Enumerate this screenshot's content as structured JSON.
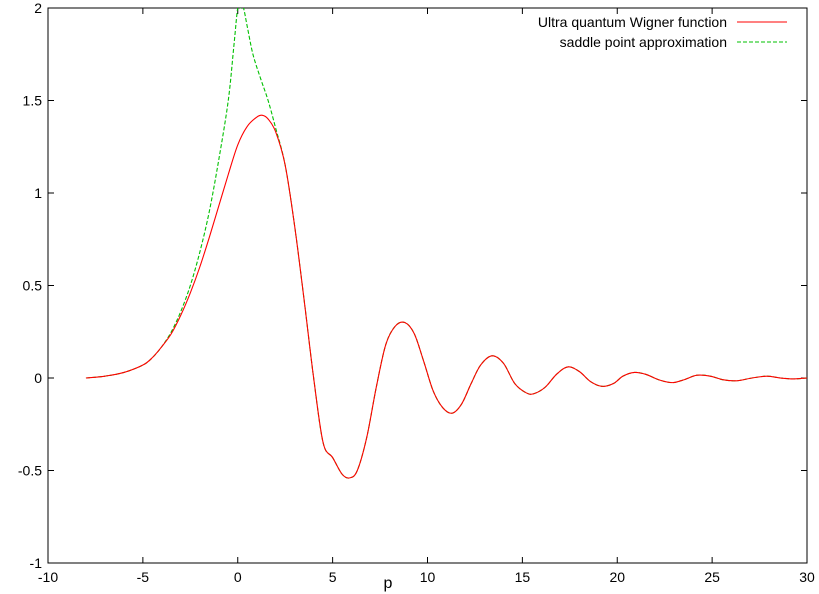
{
  "chart_data": {
    "type": "line",
    "title": "",
    "xlabel": "p",
    "ylabel": "",
    "xlim": [
      -10,
      30
    ],
    "ylim": [
      -1,
      2
    ],
    "xticks": [
      "-10",
      "-5",
      "0",
      "5",
      "10",
      "15",
      "20",
      "25",
      "30"
    ],
    "xtick_values": [
      -10,
      -5,
      0,
      5,
      10,
      15,
      20,
      25,
      30
    ],
    "yticks": [
      "-1",
      "-0.5",
      "0",
      "0.5",
      "1",
      "1.5",
      "2"
    ],
    "ytick_values": [
      -1,
      -0.5,
      0,
      0.5,
      1,
      1.5,
      2
    ],
    "grid": false,
    "legend_position": "top-right",
    "series": [
      {
        "name": "Ultra quantum Wigner function",
        "color": "#ff0000",
        "dash": "solid",
        "x": [
          -8,
          -7,
          -6,
          -5,
          -4.5,
          -4,
          -3.5,
          -3,
          -2.5,
          -2,
          -1.5,
          -1,
          -0.5,
          0,
          0.5,
          1,
          1.3,
          1.6,
          2,
          2.5,
          3,
          3.5,
          4,
          4.5,
          5,
          5.5,
          5.9,
          6.3,
          6.8,
          7.3,
          7.8,
          8.3,
          8.8,
          9.3,
          9.8,
          10.3,
          10.8,
          11.3,
          11.8,
          12.3,
          12.8,
          13.4,
          14,
          14.6,
          15.2,
          15.6,
          16.2,
          16.8,
          17.4,
          18,
          18.6,
          19.2,
          19.8,
          20.3,
          20.9,
          21.5,
          22.2,
          22.9,
          23.5,
          24.2,
          24.9,
          25.6,
          26.3,
          27.1,
          27.9,
          28.6,
          29.3,
          30
        ],
        "y": [
          0.0,
          0.01,
          0.03,
          0.07,
          0.11,
          0.17,
          0.24,
          0.34,
          0.46,
          0.6,
          0.76,
          0.93,
          1.1,
          1.26,
          1.36,
          1.41,
          1.42,
          1.4,
          1.33,
          1.15,
          0.82,
          0.42,
          -0.0,
          -0.35,
          -0.43,
          -0.52,
          -0.54,
          -0.5,
          -0.32,
          -0.05,
          0.18,
          0.28,
          0.3,
          0.24,
          0.09,
          -0.07,
          -0.16,
          -0.19,
          -0.14,
          -0.03,
          0.07,
          0.12,
          0.08,
          -0.03,
          -0.08,
          -0.085,
          -0.05,
          0.02,
          0.06,
          0.035,
          -0.02,
          -0.045,
          -0.03,
          0.01,
          0.03,
          0.02,
          -0.01,
          -0.025,
          -0.01,
          0.015,
          0.01,
          -0.01,
          -0.015,
          0.0,
          0.01,
          0.0,
          -0.005,
          0.0
        ]
      },
      {
        "name": "saddle point approximation",
        "color": "#00c000",
        "dash": "dashed",
        "x": [
          -8,
          -7,
          -6,
          -5,
          -4.5,
          -4,
          -3.5,
          -3,
          -2.5,
          -2,
          -1.5,
          -1,
          -0.5,
          -0.2,
          0,
          0.15,
          0.3,
          0.5,
          0.8,
          1.2,
          1.6,
          2,
          2.5,
          3,
          3.5,
          4,
          4.5,
          5,
          5.5,
          5.9,
          6.3,
          6.8,
          7.3,
          7.8,
          8.3,
          8.8,
          9.3,
          9.8,
          10.3,
          10.8,
          11.3,
          11.8,
          12.3,
          12.8,
          13.4,
          14,
          14.6,
          15.2,
          15.6,
          16.2,
          16.8,
          17.4,
          18,
          18.6,
          19.2,
          19.8,
          20.3,
          20.9,
          21.5,
          22.2,
          22.9,
          23.5,
          24.2,
          24.9,
          25.6,
          26.3,
          27.1,
          27.9,
          28.6,
          29.3,
          30
        ],
        "y": [
          0.0,
          0.01,
          0.03,
          0.07,
          0.11,
          0.17,
          0.25,
          0.36,
          0.5,
          0.68,
          0.9,
          1.18,
          1.5,
          1.8,
          2.0,
          2.0,
          2.0,
          1.9,
          1.75,
          1.62,
          1.5,
          1.35,
          1.15,
          0.82,
          0.42,
          -0.0,
          -0.35,
          -0.43,
          -0.52,
          -0.54,
          -0.5,
          -0.32,
          -0.05,
          0.18,
          0.28,
          0.3,
          0.24,
          0.09,
          -0.07,
          -0.16,
          -0.19,
          -0.14,
          -0.03,
          0.07,
          0.12,
          0.08,
          -0.03,
          -0.08,
          -0.085,
          -0.05,
          0.02,
          0.06,
          0.035,
          -0.02,
          -0.045,
          -0.03,
          0.01,
          0.03,
          0.02,
          -0.01,
          -0.025,
          -0.01,
          0.015,
          0.01,
          -0.01,
          -0.015,
          0.0,
          0.01,
          0.0,
          -0.005,
          0.0
        ]
      }
    ]
  }
}
